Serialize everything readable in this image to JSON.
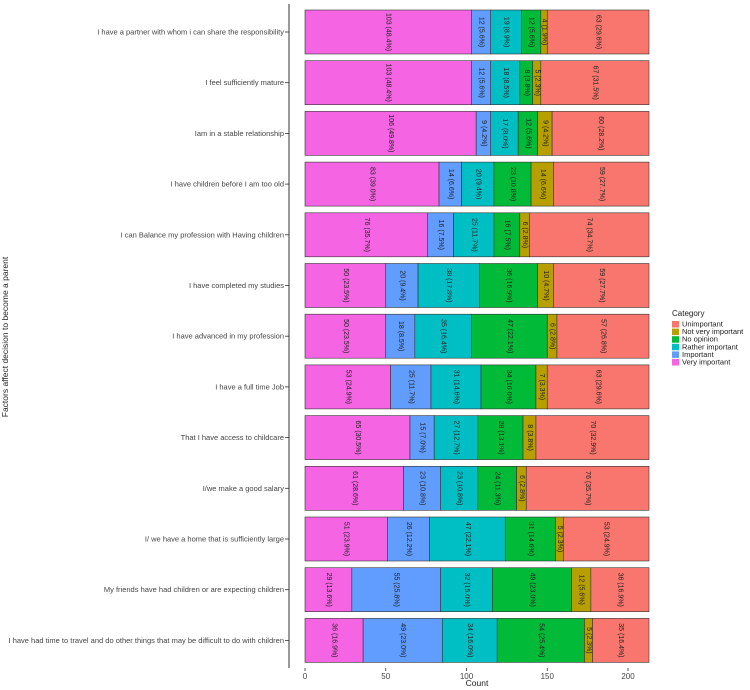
{
  "chart_data": {
    "type": "bar",
    "orientation": "horizontal",
    "stacked": true,
    "xlabel": "Count",
    "ylabel": "Factors affect decision to become a parent",
    "xlim": [
      0,
      213
    ],
    "xticks": [
      "0",
      "50",
      "100",
      "150",
      "200"
    ],
    "xtick_values": [
      0,
      50,
      100,
      150,
      200
    ],
    "grid": false,
    "legend": {
      "title": "Category",
      "position": "right",
      "entries": [
        "Unimportant",
        "Not very important",
        "No opinion",
        "Rather important",
        "Important",
        "Very important"
      ]
    },
    "stack_order": [
      "Very important",
      "Important",
      "Rather important",
      "No opinion",
      "Not very important",
      "Unimportant"
    ],
    "colors": {
      "Very important": "#F564E3",
      "Important": "#619CFF",
      "Rather important": "#00BFC4",
      "No opinion": "#00BA38",
      "Not very important": "#B79F00",
      "Unimportant": "#F8766D"
    },
    "categories": [
      "I have a partner with whom i can share the responsibility",
      "I feel sufficiently mature",
      "Iam in a stable relationship",
      "I have children before I am too old",
      "I can Balance my profession with Having children",
      "I have completed my studies",
      "I have advanced in my profession",
      "I have a full time Job",
      "That I have access to childcare",
      "I/we make a good salary",
      "I/ we have a home that is sufficiently large",
      "My friends have had children or are expecting children",
      "I have had time to travel and do other things that may be difficult to do with children"
    ],
    "series": [
      {
        "name": "Very important",
        "values": [
          103,
          103,
          106,
          83,
          76,
          50,
          50,
          53,
          65,
          61,
          51,
          29,
          36
        ],
        "labels": [
          "103 (48.4%)",
          "103 (48.4%)",
          "106 (49.8%)",
          "83 (39.0%)",
          "76 (35.7%)",
          "50 (23.5%)",
          "50 (23.5%)",
          "53 (24.9%)",
          "65 (30.5%)",
          "61 (28.6%)",
          "51 (23.9%)",
          "29 (13.6%)",
          "36 (16.9%)"
        ]
      },
      {
        "name": "Important",
        "values": [
          12,
          12,
          9,
          14,
          16,
          20,
          18,
          25,
          15,
          23,
          26,
          55,
          49
        ],
        "labels": [
          "12 (5.6%)",
          "12 (5.6%)",
          "9 (4.2%)",
          "14 (6.6%)",
          "16 (7.5%)",
          "20 (9.4%)",
          "18 (8.5%)",
          "25 (11.7%)",
          "15 (7.0%)",
          "23 (10.8%)",
          "26 (12.2%)",
          "55 (25.8%)",
          "49 (23.0%)"
        ]
      },
      {
        "name": "Rather important",
        "values": [
          19,
          18,
          17,
          20,
          25,
          38,
          35,
          31,
          27,
          23,
          47,
          32,
          34
        ],
        "labels": [
          "19 (8.9%)",
          "18 (8.5%)",
          "17 (8.0%)",
          "20 (9.4%)",
          "25 (11.7%)",
          "38 (17.8%)",
          "35 (16.4%)",
          "31 (14.6%)",
          "27 (12.7%)",
          "23 (10.8%)",
          "47 (22.1%)",
          "32 (15.0%)",
          "34 (16.0%)"
        ]
      },
      {
        "name": "No opinion",
        "values": [
          12,
          8,
          12,
          23,
          16,
          36,
          47,
          34,
          28,
          24,
          31,
          49,
          54
        ],
        "labels": [
          "12 (5.6%)",
          "8 (3.8%)",
          "12 (5.6%)",
          "23 (10.8%)",
          "16 (7.5%)",
          "36 (16.9%)",
          "47 (22.1%)",
          "34 (16.0%)",
          "28 (13.1%)",
          "24 (11.3%)",
          "31 (14.6%)",
          "49 (23.0%)",
          "54 (25.4%)"
        ]
      },
      {
        "name": "Not very important",
        "values": [
          4,
          5,
          9,
          14,
          6,
          10,
          6,
          7,
          8,
          6,
          5,
          12,
          5
        ],
        "labels": [
          "4 (1.9%)",
          "5 (2.3%)",
          "9 (4.2%)",
          "14 (6.6%)",
          "6 (2.8%)",
          "10 (4.7%)",
          "6 (2.8%)",
          "7 (3.3%)",
          "8 (3.8%)",
          "6 (2.8%)",
          "5 (2.3%)",
          "12 (5.6%)",
          "5 (2.3%)"
        ]
      },
      {
        "name": "Unimportant",
        "values": [
          63,
          67,
          60,
          59,
          74,
          59,
          57,
          63,
          70,
          76,
          53,
          36,
          35
        ],
        "labels": [
          "63 (29.6%)",
          "67 (31.5%)",
          "60 (28.2%)",
          "59 (27.7%)",
          "74 (34.7%)",
          "59 (27.7%)",
          "57 (26.8%)",
          "63 (29.6%)",
          "70 (32.9%)",
          "76 (35.7%)",
          "53 (24.9%)",
          "36 (16.9%)",
          "35 (16.4%)"
        ]
      }
    ]
  }
}
